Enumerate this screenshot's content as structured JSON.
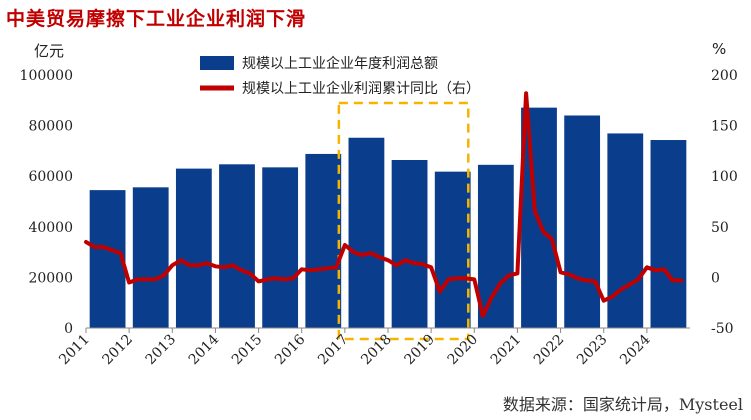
{
  "title": "中美贸易摩擦下工业企业利润下滑",
  "source": "数据来源：国家统计局，Mysteel",
  "chart_data": {
    "type": "bar+line",
    "left_unit": "亿元",
    "right_unit": "%",
    "left_axis": {
      "min": 0,
      "max": 100000,
      "ticks": [
        0,
        20000,
        40000,
        60000,
        80000,
        100000
      ]
    },
    "right_axis": {
      "min": -50,
      "max": 200,
      "ticks": [
        -50,
        0,
        50,
        100,
        150,
        200
      ]
    },
    "x_tick_labels": [
      "2011",
      "2012",
      "2013",
      "2014",
      "2015",
      "2016",
      "2017",
      "2018",
      "2019",
      "2020",
      "2021",
      "2022",
      "2023",
      "2024"
    ],
    "bars": {
      "name": "规模以上工业企业年度利润总额",
      "color": "#0A3E8C",
      "categories": [
        "2011",
        "2012",
        "2013",
        "2014",
        "2015",
        "2016",
        "2017",
        "2018",
        "2019",
        "2020",
        "2021",
        "2022",
        "2023",
        "2024"
      ],
      "values": [
        54500,
        55600,
        63000,
        64700,
        63500,
        68800,
        75200,
        66400,
        61800,
        64500,
        87100,
        84000,
        76900,
        74300
      ]
    },
    "line": {
      "name": "规模以上工业企业利润累计同比（右）",
      "color": "#C00000",
      "x": [
        2011.0,
        2011.2,
        2011.4,
        2011.6,
        2011.8,
        2012.0,
        2012.2,
        2012.4,
        2012.6,
        2012.8,
        2013.0,
        2013.2,
        2013.4,
        2013.6,
        2013.8,
        2014.0,
        2014.2,
        2014.4,
        2014.6,
        2014.8,
        2015.0,
        2015.2,
        2015.4,
        2015.6,
        2015.8,
        2016.0,
        2016.2,
        2016.4,
        2016.6,
        2016.8,
        2017.0,
        2017.2,
        2017.4,
        2017.6,
        2017.8,
        2018.0,
        2018.2,
        2018.4,
        2018.6,
        2018.8,
        2019.0,
        2019.2,
        2019.4,
        2019.6,
        2019.8,
        2020.0,
        2020.2,
        2020.4,
        2020.6,
        2020.8,
        2021.0,
        2021.2,
        2021.4,
        2021.6,
        2021.8,
        2022.0,
        2022.2,
        2022.4,
        2022.6,
        2022.8,
        2023.0,
        2023.2,
        2023.4,
        2023.6,
        2023.8,
        2024.0,
        2024.2,
        2024.4,
        2024.6,
        2024.8
      ],
      "y": [
        35,
        30,
        30,
        27,
        24,
        -5,
        -2,
        -2,
        -2,
        2,
        12,
        17,
        12,
        12,
        14,
        11,
        10,
        12,
        7,
        4,
        -4,
        -2,
        -1,
        -2,
        -1,
        8,
        7,
        8,
        9,
        10,
        32,
        25,
        22,
        24,
        20,
        17,
        12,
        17,
        14,
        13,
        10,
        -14,
        -2,
        -1,
        -1,
        -2,
        -38,
        -20,
        -6,
        2,
        4,
        182,
        66,
        45,
        38,
        5,
        3,
        -1,
        -3,
        -4,
        -23,
        -19,
        -12,
        -7,
        -2,
        10,
        7,
        8,
        -3,
        -3
      ]
    },
    "highlight_box": {
      "x_range": [
        "2017",
        "2020"
      ],
      "style": "dashed",
      "color": "#F5B400"
    }
  }
}
